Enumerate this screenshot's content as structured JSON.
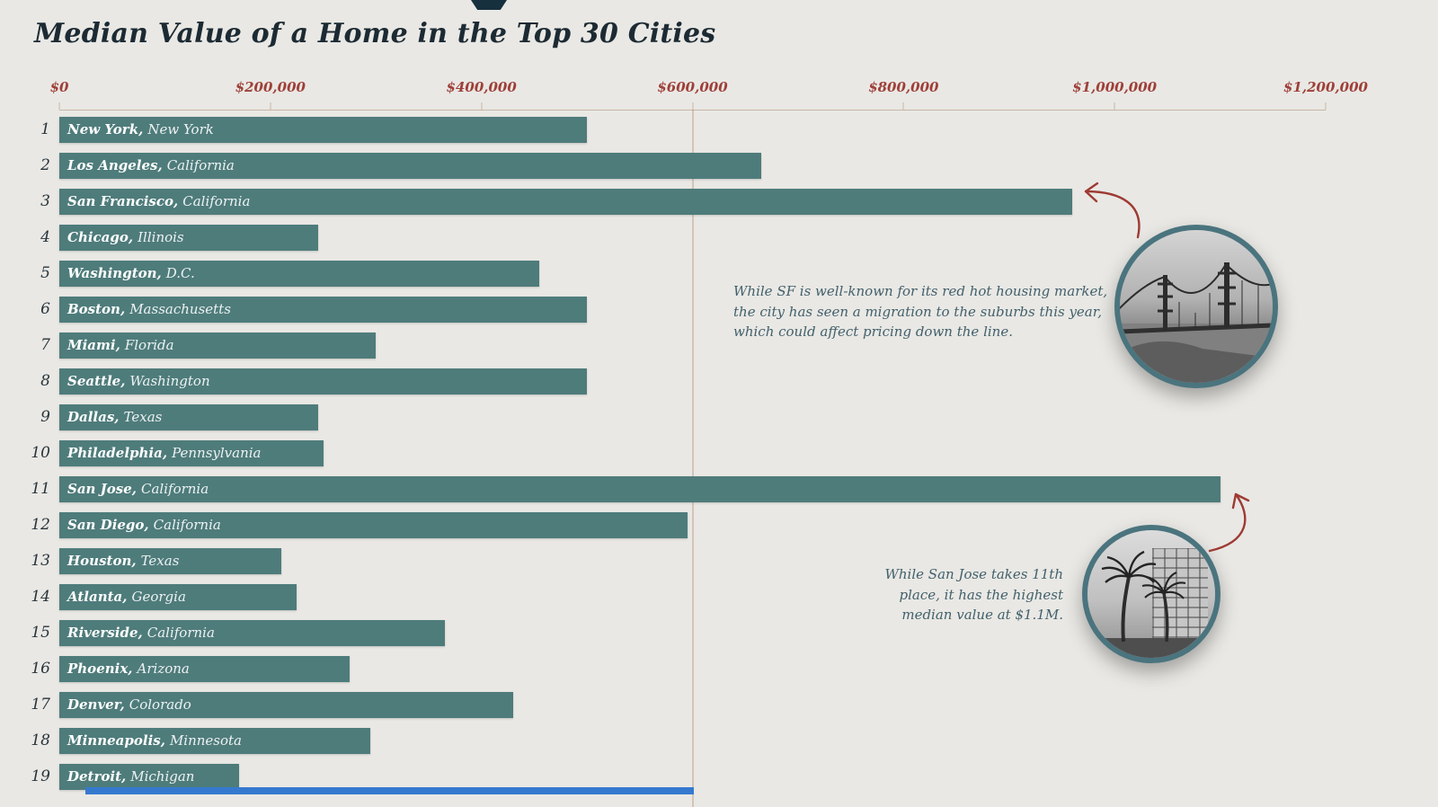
{
  "colors": {
    "background": "#e9e8e4",
    "bar": "#4e7c7b",
    "title_text": "#1c2a33",
    "axis_label": "#9e3f38",
    "rank_text": "#28343c",
    "annotation_text": "#42606c",
    "arrow": "#9e3a33",
    "photo_ring": "#4a747e",
    "reference_line": "#b1937e",
    "axis_line": "#c9b6a6",
    "bottom_strip": "#3579cf"
  },
  "chart_data": {
    "type": "bar",
    "orientation": "horizontal",
    "title": "Median Value of a Home in the Top 30 Cities",
    "xlabel": "",
    "ylabel": "",
    "xlim": [
      0,
      1200000
    ],
    "grid": false,
    "legend": false,
    "x_ticks": [
      "$0",
      "$200,000",
      "$400,000",
      "$600,000",
      "$800,000",
      "$1,000,000",
      "$1,200,000"
    ],
    "x_tick_values": [
      0,
      200000,
      400000,
      600000,
      800000,
      1000000,
      1200000
    ],
    "reference_line_value": 600000,
    "rows": [
      {
        "rank": 1,
        "city": "New York,",
        "state": "New York",
        "value": 500000
      },
      {
        "rank": 2,
        "city": "Los Angeles,",
        "state": "California",
        "value": 665000
      },
      {
        "rank": 3,
        "city": "San Francisco,",
        "state": "California",
        "value": 960000
      },
      {
        "rank": 4,
        "city": "Chicago,",
        "state": "Illinois",
        "value": 245000
      },
      {
        "rank": 5,
        "city": "Washington,",
        "state": "D.C.",
        "value": 455000
      },
      {
        "rank": 6,
        "city": "Boston,",
        "state": "Massachusetts",
        "value": 500000
      },
      {
        "rank": 7,
        "city": "Miami,",
        "state": "Florida",
        "value": 300000
      },
      {
        "rank": 8,
        "city": "Seattle,",
        "state": "Washington",
        "value": 500000
      },
      {
        "rank": 9,
        "city": "Dallas,",
        "state": "Texas",
        "value": 245000
      },
      {
        "rank": 10,
        "city": "Philadelphia,",
        "state": "Pennsylvania",
        "value": 250000
      },
      {
        "rank": 11,
        "city": "San Jose,",
        "state": "California",
        "value": 1100000
      },
      {
        "rank": 12,
        "city": "San Diego,",
        "state": "California",
        "value": 595000
      },
      {
        "rank": 13,
        "city": "Houston,",
        "state": "Texas",
        "value": 210000
      },
      {
        "rank": 14,
        "city": "Atlanta,",
        "state": "Georgia",
        "value": 225000
      },
      {
        "rank": 15,
        "city": "Riverside,",
        "state": "California",
        "value": 365000
      },
      {
        "rank": 16,
        "city": "Phoenix,",
        "state": "Arizona",
        "value": 275000
      },
      {
        "rank": 17,
        "city": "Denver,",
        "state": "Colorado",
        "value": 430000
      },
      {
        "rank": 18,
        "city": "Minneapolis,",
        "state": "Minnesota",
        "value": 295000
      },
      {
        "rank": 19,
        "city": "Detroit,",
        "state": "Michigan",
        "value": 170000
      }
    ]
  },
  "annotations": {
    "sf": {
      "lines": [
        "While SF is well-known for its red hot housing market,",
        "the city has seen a migration to the suburbs this year,",
        "which could affect pricing down the line."
      ],
      "photo": "golden-gate-bridge-photo"
    },
    "san_jose": {
      "lines": [
        "While San Jose takes 11th",
        "place, it has the highest",
        "median value at $1.1M."
      ],
      "photo": "san-jose-palm-trees-photo"
    }
  }
}
